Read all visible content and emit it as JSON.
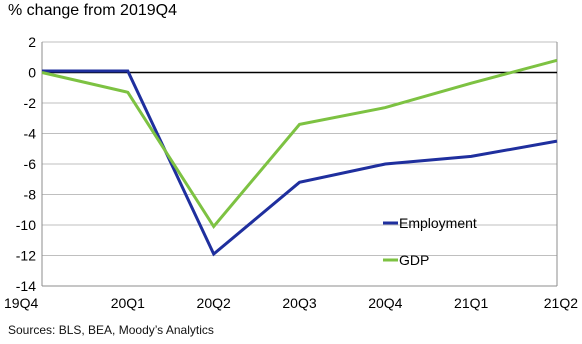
{
  "chart_data": {
    "type": "line",
    "title": "",
    "ylabel": "% change from 2019Q4",
    "xlabel": "",
    "categories": [
      "19Q4",
      "20Q1",
      "20Q2",
      "20Q3",
      "20Q4",
      "21Q1",
      "21Q2"
    ],
    "series": [
      {
        "name": "Employment",
        "color": "#1f2f9e",
        "values": [
          0.1,
          0.1,
          -11.9,
          -7.2,
          -6.0,
          -5.5,
          -4.5
        ]
      },
      {
        "name": "GDP",
        "color": "#7dc242",
        "values": [
          0.0,
          -1.3,
          -10.1,
          -3.4,
          -2.3,
          -0.7,
          0.8
        ]
      }
    ],
    "ylim": [
      -14,
      2
    ],
    "yticks": [
      2,
      0,
      -2,
      -4,
      -6,
      -8,
      -10,
      -12,
      -14
    ],
    "grid": true,
    "legend": "lower-right",
    "source": "Sources: BLS, BEA, Moody’s Analytics"
  }
}
